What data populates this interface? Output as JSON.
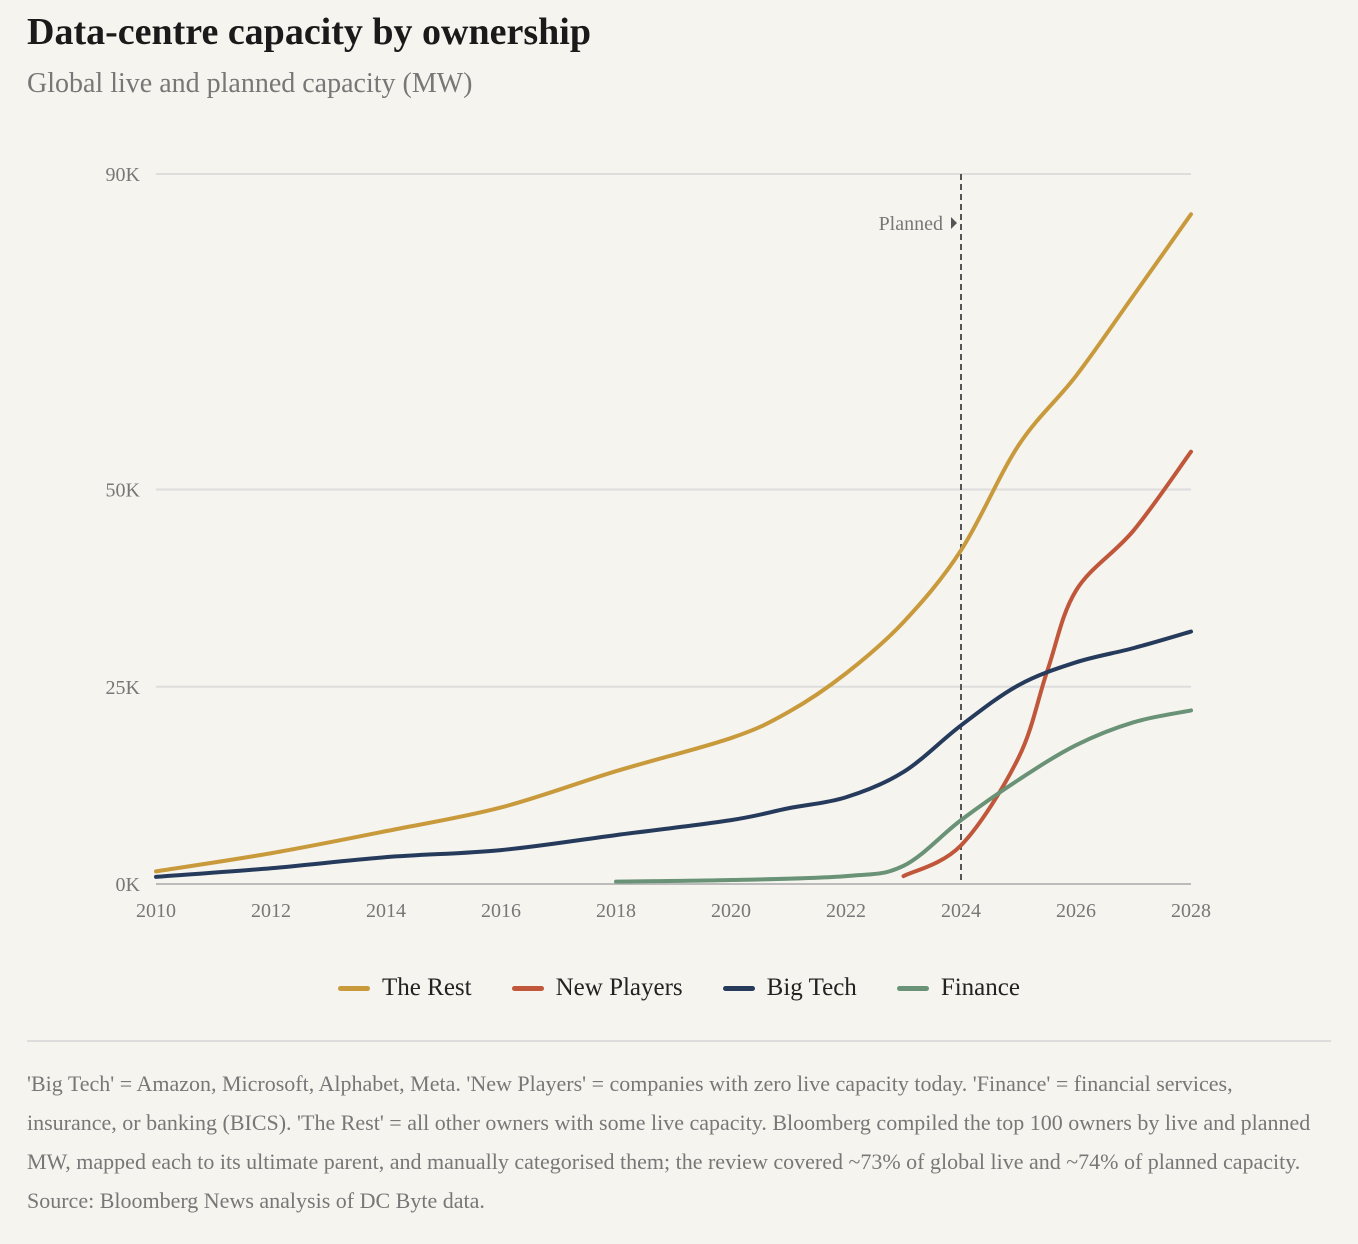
{
  "header": {
    "title": "Data-centre capacity by ownership",
    "subtitle": "Global live and planned capacity (MW)"
  },
  "chart_data": {
    "type": "line",
    "title": "Data-centre capacity by ownership",
    "subtitle": "Global live and planned capacity (MW)",
    "xlabel": "",
    "ylabel": "MW",
    "xlim": [
      2010,
      2028
    ],
    "ylim": [
      0,
      90000
    ],
    "x_ticks": [
      2010,
      2012,
      2014,
      2016,
      2018,
      2020,
      2022,
      2024,
      2026,
      2028
    ],
    "y_ticks": [
      {
        "value": 0,
        "label": "0K"
      },
      {
        "value": 25000,
        "label": "25K"
      },
      {
        "value": 50000,
        "label": "50K"
      },
      {
        "value": 90000,
        "label": "90K"
      }
    ],
    "grid": true,
    "annotation": {
      "x": 2024,
      "label": "Planned"
    },
    "legend_position": "bottom",
    "series": [
      {
        "name": "The Rest",
        "color": "#c99a3c",
        "x": [
          2010,
          2012,
          2014,
          2016,
          2018,
          2020,
          2021,
          2022,
          2023,
          2024,
          2025,
          2026,
          2027,
          2028
        ],
        "values": [
          1600,
          3900,
          6700,
          9700,
          14300,
          18500,
          21800,
          26700,
          33200,
          42300,
          55600,
          64400,
          74600,
          84900
        ]
      },
      {
        "name": "New Players",
        "color": "#c0563a",
        "x": [
          2023,
          2024,
          2025,
          2025.5,
          2026,
          2027,
          2028
        ],
        "values": [
          1000,
          4900,
          16000,
          27000,
          37200,
          44800,
          54800
        ]
      },
      {
        "name": "Big Tech",
        "color": "#263b5c",
        "x": [
          2010,
          2012,
          2014,
          2016,
          2018,
          2020,
          2021,
          2022,
          2023,
          2024,
          2025,
          2026,
          2027,
          2028
        ],
        "values": [
          900,
          2000,
          3400,
          4300,
          6200,
          8100,
          9600,
          11000,
          14200,
          20100,
          25200,
          28100,
          29900,
          32000
        ]
      },
      {
        "name": "Finance",
        "color": "#6a9276",
        "x": [
          2018,
          2020,
          2022,
          2023,
          2024,
          2025,
          2026,
          2027,
          2028
        ],
        "values": [
          300,
          500,
          1000,
          2300,
          8100,
          13200,
          17600,
          20500,
          22000
        ]
      }
    ]
  },
  "footnote": "'Big Tech' = Amazon, Microsoft, Alphabet, Meta. 'New Players' = companies with zero live capacity today. 'Finance' = financial services, insurance, or banking (BICS). 'The Rest' = all other owners with some live capacity. Bloomberg compiled the top 100 owners by live and planned MW, mapped each to its ultimate parent, and manually categorised them; the review covered ~73% of global live and ~74% of planned capacity. Source: Bloomberg News analysis of DC Byte data."
}
